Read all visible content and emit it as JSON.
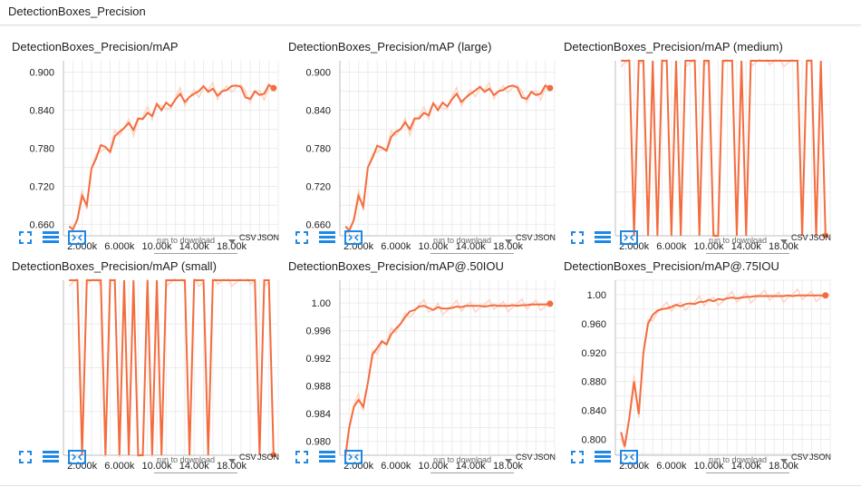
{
  "header": {
    "title": "DetectionBoxes_Precision"
  },
  "toolbar": {
    "download_placeholder": "run to download",
    "csv_label": "CSV",
    "json_label": "JSON"
  },
  "colors": {
    "line": "#f46c3e",
    "raw": "#fbd5c6",
    "grid": "#ececec"
  },
  "icons": [
    "fullscreen-icon",
    "toggle-log-scale-icon",
    "fit-domain-icon"
  ],
  "chart_data": [
    {
      "type": "line",
      "title": "DetectionBoxes_Precision/mAP",
      "xlim": [
        0,
        23000
      ],
      "ylim": [
        0.642,
        0.918
      ],
      "xticks": [
        2000,
        6000,
        10000,
        14000,
        18000
      ],
      "xtick_labels": [
        "2.000k",
        "6.000k",
        "10.00k",
        "14.00k",
        "18.00k"
      ],
      "yticks": [
        0.66,
        0.72,
        0.78,
        0.84,
        0.9
      ],
      "ytick_labels": [
        "0.660",
        "0.720",
        "0.780",
        "0.840",
        "0.900"
      ],
      "series": [
        {
          "x": [
            600,
            1000,
            1500,
            2000,
            2500,
            3000,
            3500,
            4000,
            4500,
            5000,
            5500,
            6000,
            6500,
            7000,
            7500,
            8000,
            8500,
            9000,
            9500,
            10000,
            10500,
            11000,
            11500,
            12000,
            12500,
            13000,
            13500,
            14000,
            14500,
            15000,
            15500,
            16000,
            16500,
            17000,
            17500,
            18000,
            18500,
            19000,
            19500,
            20000,
            20500,
            21000,
            21500,
            22000,
            22500
          ],
          "y": [
            0.657,
            0.652,
            0.668,
            0.705,
            0.69,
            0.748,
            0.764,
            0.785,
            0.782,
            0.774,
            0.799,
            0.806,
            0.812,
            0.82,
            0.809,
            0.827,
            0.826,
            0.836,
            0.831,
            0.85,
            0.84,
            0.852,
            0.846,
            0.857,
            0.866,
            0.853,
            0.861,
            0.866,
            0.87,
            0.878,
            0.869,
            0.874,
            0.863,
            0.87,
            0.872,
            0.878,
            0.879,
            0.877,
            0.86,
            0.858,
            0.87,
            0.864,
            0.866,
            0.88,
            0.875
          ]
        }
      ]
    },
    {
      "type": "line",
      "title": "DetectionBoxes_Precision/mAP (large)",
      "xlim": [
        0,
        23000
      ],
      "ylim": [
        0.642,
        0.918
      ],
      "xticks": [
        2000,
        6000,
        10000,
        14000,
        18000
      ],
      "xtick_labels": [
        "2.000k",
        "6.000k",
        "10.00k",
        "14.00k",
        "18.00k"
      ],
      "yticks": [
        0.66,
        0.72,
        0.78,
        0.84,
        0.9
      ],
      "ytick_labels": [
        "0.660",
        "0.720",
        "0.780",
        "0.840",
        "0.900"
      ],
      "series": [
        {
          "x": [
            600,
            1000,
            1500,
            2000,
            2500,
            3000,
            3500,
            4000,
            4500,
            5000,
            5500,
            6000,
            6500,
            7000,
            7500,
            8000,
            8500,
            9000,
            9500,
            10000,
            10500,
            11000,
            11500,
            12000,
            12500,
            13000,
            13500,
            14000,
            14500,
            15000,
            15500,
            16000,
            16500,
            17000,
            17500,
            18000,
            18500,
            19000,
            19500,
            20000,
            20500,
            21000,
            21500,
            22000,
            22500
          ],
          "y": [
            0.657,
            0.65,
            0.667,
            0.705,
            0.688,
            0.75,
            0.765,
            0.784,
            0.781,
            0.776,
            0.798,
            0.806,
            0.81,
            0.821,
            0.81,
            0.827,
            0.827,
            0.836,
            0.832,
            0.851,
            0.84,
            0.852,
            0.846,
            0.857,
            0.866,
            0.853,
            0.86,
            0.866,
            0.871,
            0.877,
            0.869,
            0.874,
            0.864,
            0.87,
            0.872,
            0.877,
            0.879,
            0.876,
            0.86,
            0.858,
            0.869,
            0.864,
            0.866,
            0.879,
            0.875
          ]
        }
      ]
    },
    {
      "type": "line",
      "title": "DetectionBoxes_Precision/mAP (medium)",
      "xlim": [
        0,
        23000
      ],
      "ylim": [
        0,
        1
      ],
      "xticks": [
        2000,
        6000,
        10000,
        14000,
        18000
      ],
      "xtick_labels": [
        "2.000k",
        "6.000k",
        "10.00k",
        "14.00k",
        "18.00k"
      ],
      "yticks": [],
      "ytick_labels": [],
      "series": [
        {
          "x": [
            600,
            1000,
            1500,
            2000,
            2500,
            3000,
            3500,
            4000,
            4500,
            5000,
            5500,
            6000,
            6500,
            7000,
            7500,
            8000,
            8500,
            9000,
            9500,
            10000,
            10500,
            11000,
            11500,
            12000,
            12500,
            13000,
            13500,
            14000,
            14500,
            15000,
            15500,
            16000,
            16500,
            17000,
            17500,
            18000,
            18500,
            19000,
            19500,
            20000,
            20500,
            21000,
            21500,
            22000,
            22500
          ],
          "y": [
            1,
            1,
            1,
            0,
            1,
            1,
            0,
            1,
            0,
            1,
            1,
            0,
            1,
            0,
            1,
            1,
            1,
            0,
            1,
            1,
            0,
            0,
            1,
            1,
            1,
            0,
            1,
            0,
            1,
            1,
            1,
            1,
            1,
            1,
            1,
            1,
            1,
            1,
            1,
            0,
            1,
            1,
            0,
            1,
            0
          ]
        }
      ]
    },
    {
      "type": "line",
      "title": "DetectionBoxes_Precision/mAP (small)",
      "xlim": [
        0,
        23000
      ],
      "ylim": [
        0,
        1
      ],
      "xticks": [
        2000,
        6000,
        10000,
        14000,
        18000
      ],
      "xtick_labels": [
        "2.000k",
        "6.000k",
        "10.00k",
        "14.00k",
        "18.00k"
      ],
      "yticks": [],
      "ytick_labels": [],
      "series": [
        {
          "x": [
            600,
            1000,
            1500,
            2000,
            2500,
            3000,
            3500,
            4000,
            4500,
            5000,
            5500,
            6000,
            6500,
            7000,
            7500,
            8000,
            8500,
            9000,
            9500,
            10000,
            10500,
            11000,
            11500,
            12000,
            12500,
            13000,
            13500,
            14000,
            14500,
            15000,
            15500,
            16000,
            16500,
            17000,
            17500,
            18000,
            18500,
            19000,
            19500,
            20000,
            20500,
            21000,
            21500,
            22000,
            22500
          ],
          "y": [
            1,
            1,
            1,
            0,
            1,
            1,
            1,
            1,
            0,
            1,
            1,
            0,
            1,
            0,
            1,
            0,
            0,
            1,
            0,
            1,
            0,
            1,
            1,
            1,
            1,
            1,
            0,
            1,
            1,
            1,
            0,
            1,
            1,
            1,
            1,
            1,
            1,
            1,
            1,
            1,
            1,
            0,
            1,
            1,
            0
          ]
        }
      ]
    },
    {
      "type": "line",
      "title": "DetectionBoxes_Precision/mAP@.50IOU",
      "xlim": [
        0,
        23000
      ],
      "ylim": [
        0.978,
        1.0033
      ],
      "xticks": [
        2000,
        6000,
        10000,
        14000,
        18000
      ],
      "xtick_labels": [
        "2.000k",
        "6.000k",
        "10.00k",
        "14.00k",
        "18.00k"
      ],
      "yticks": [
        0.98,
        0.984,
        0.988,
        0.992,
        0.996,
        1.0
      ],
      "ytick_labels": [
        "0.980",
        "0.984",
        "0.988",
        "0.992",
        "0.996",
        "1.00"
      ],
      "series": [
        {
          "x": [
            600,
            1000,
            1500,
            2000,
            2500,
            3000,
            3500,
            4000,
            4500,
            5000,
            5500,
            6000,
            6500,
            7000,
            7500,
            8000,
            8500,
            9000,
            9500,
            10000,
            10500,
            11000,
            11500,
            12000,
            12500,
            13000,
            13500,
            14000,
            14500,
            15000,
            15500,
            16000,
            16500,
            17000,
            17500,
            18000,
            18500,
            19000,
            19500,
            20000,
            20500,
            21000,
            21500,
            22000,
            22500
          ],
          "y": [
            0.978,
            0.982,
            0.985,
            0.986,
            0.985,
            0.9885,
            0.9926,
            0.9935,
            0.9945,
            0.994,
            0.9955,
            0.9963,
            0.997,
            0.998,
            0.9988,
            0.999,
            0.9995,
            0.9996,
            0.9993,
            0.999,
            0.9994,
            0.9992,
            0.9992,
            0.9993,
            0.9995,
            0.9994,
            0.9996,
            0.9996,
            0.9996,
            0.9996,
            0.9995,
            0.9996,
            0.9997,
            0.9996,
            0.9996,
            0.9996,
            0.9997,
            0.9996,
            0.9997,
            0.9997,
            0.9998,
            0.9998,
            0.9998,
            0.9998,
            0.9999
          ]
        }
      ]
    },
    {
      "type": "line",
      "title": "DetectionBoxes_Precision/mAP@.75IOU",
      "xlim": [
        0,
        23000
      ],
      "ylim": [
        0.778,
        1.02
      ],
      "xticks": [
        2000,
        6000,
        10000,
        14000,
        18000
      ],
      "xtick_labels": [
        "2.000k",
        "6.000k",
        "10.00k",
        "14.00k",
        "18.00k"
      ],
      "yticks": [
        0.8,
        0.84,
        0.88,
        0.92,
        0.96,
        1.0
      ],
      "ytick_labels": [
        "0.800",
        "0.840",
        "0.880",
        "0.920",
        "0.960",
        "1.00"
      ],
      "series": [
        {
          "x": [
            600,
            1000,
            1500,
            2000,
            2500,
            3000,
            3500,
            4000,
            4500,
            5000,
            5500,
            6000,
            6500,
            7000,
            7500,
            8000,
            8500,
            9000,
            9500,
            10000,
            10500,
            11000,
            11500,
            12000,
            12500,
            13000,
            13500,
            14000,
            14500,
            15000,
            15500,
            16000,
            16500,
            17000,
            17500,
            18000,
            18500,
            19000,
            19500,
            20000,
            20500,
            21000,
            21500,
            22000,
            22500
          ],
          "y": [
            0.81,
            0.79,
            0.83,
            0.88,
            0.835,
            0.92,
            0.96,
            0.972,
            0.978,
            0.98,
            0.981,
            0.983,
            0.986,
            0.984,
            0.987,
            0.988,
            0.987,
            0.99,
            0.99,
            0.993,
            0.991,
            0.994,
            0.993,
            0.995,
            0.996,
            0.995,
            0.996,
            0.997,
            0.997,
            0.998,
            0.998,
            0.998,
            0.998,
            0.998,
            0.998,
            0.998,
            0.999,
            0.998,
            0.999,
            0.999,
            0.999,
            0.999,
            0.999,
            0.999,
            0.999
          ]
        }
      ]
    }
  ]
}
